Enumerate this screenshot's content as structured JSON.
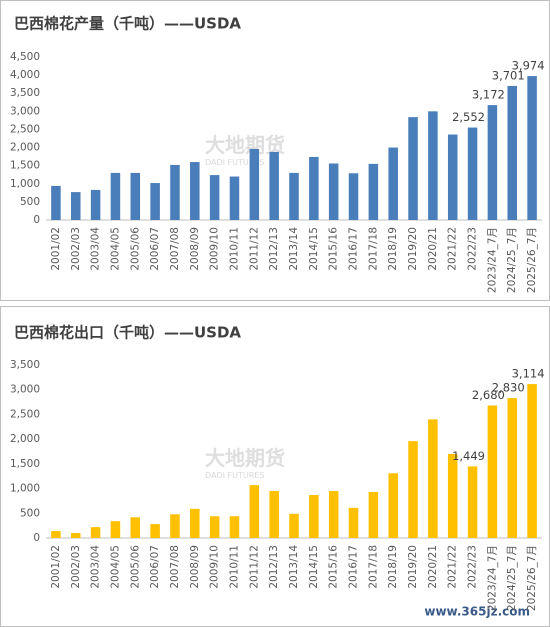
{
  "site_watermark": "www.365jz.com",
  "chart_data": [
    {
      "type": "bar",
      "title": "巴西棉花产量（千吨）——USDA",
      "color": "#4a7ebb",
      "watermark": [
        "大地期货",
        "DADI FUTURES"
      ],
      "categories": [
        "2001/02",
        "2002/03",
        "2003/04",
        "2004/05",
        "2005/06",
        "2006/07",
        "2007/08",
        "2008/09",
        "2009/10",
        "2010/11",
        "2011/12",
        "2012/13",
        "2013/14",
        "2014/15",
        "2015/16",
        "2016/17",
        "2017/18",
        "2018/19",
        "2019/20",
        "2020/21",
        "2021/22",
        "2022/23",
        "2023/24_7月",
        "2024/25_7月",
        "2025/26_7月"
      ],
      "values": [
        940,
        770,
        830,
        1300,
        1300,
        1020,
        1520,
        1600,
        1240,
        1200,
        1960,
        1880,
        1300,
        1740,
        1560,
        1290,
        1550,
        2000,
        2840,
        3000,
        2360,
        2552,
        3172,
        3701,
        3974
      ],
      "value_labels": [
        null,
        null,
        null,
        null,
        null,
        null,
        null,
        null,
        null,
        null,
        null,
        null,
        null,
        null,
        null,
        null,
        null,
        null,
        null,
        null,
        null,
        "2,552",
        "3,172",
        "3,701",
        "3,974"
      ],
      "ylim": [
        0,
        4500
      ],
      "yticks": [
        0,
        500,
        {
          "value": 1000,
          "label": "1,000"
        },
        {
          "value": 1500,
          "label": "1,500"
        },
        {
          "value": 2000,
          "label": "2,000"
        },
        {
          "value": 2500,
          "label": "2,500"
        },
        {
          "value": 3000,
          "label": "3,000"
        },
        {
          "value": 3500,
          "label": "3,500"
        },
        {
          "value": 4000,
          "label": "4,000"
        },
        {
          "value": 4500,
          "label": "4,500"
        }
      ],
      "grid": false
    },
    {
      "type": "bar",
      "title": "巴西棉花出口（千吨）——USDA",
      "color": "#ffc000",
      "watermark": [
        "大地期货",
        "DADI FUTURES"
      ],
      "categories": [
        "2001/02",
        "2002/03",
        "2003/04",
        "2004/05",
        "2005/06",
        "2006/07",
        "2007/08",
        "2008/09",
        "2009/10",
        "2010/11",
        "2011/12",
        "2012/13",
        "2013/14",
        "2014/15",
        "2015/16",
        "2016/17",
        "2017/18",
        "2018/19",
        "2019/20",
        "2020/21",
        "2021/22",
        "2022/23",
        "2023/24_7月",
        "2024/25_7月",
        "2025/26_7月"
      ],
      "values": [
        140,
        100,
        220,
        340,
        420,
        280,
        480,
        590,
        440,
        440,
        1070,
        950,
        490,
        870,
        950,
        610,
        930,
        1310,
        1960,
        2400,
        1700,
        1449,
        2680,
        2830,
        3114
      ],
      "value_labels": [
        null,
        null,
        null,
        null,
        null,
        null,
        null,
        null,
        null,
        null,
        null,
        null,
        null,
        null,
        null,
        null,
        null,
        null,
        null,
        null,
        null,
        "1,449",
        "2,680",
        "2,830",
        "3,114"
      ],
      "ylim": [
        0,
        3500
      ],
      "yticks": [
        0,
        500,
        {
          "value": 1000,
          "label": "1,000"
        },
        {
          "value": 1500,
          "label": "1,500"
        },
        {
          "value": 2000,
          "label": "2,000"
        },
        {
          "value": 2500,
          "label": "2,500"
        },
        {
          "value": 3000,
          "label": "3,000"
        },
        {
          "value": 3500,
          "label": "3,500"
        }
      ],
      "grid": false
    }
  ]
}
